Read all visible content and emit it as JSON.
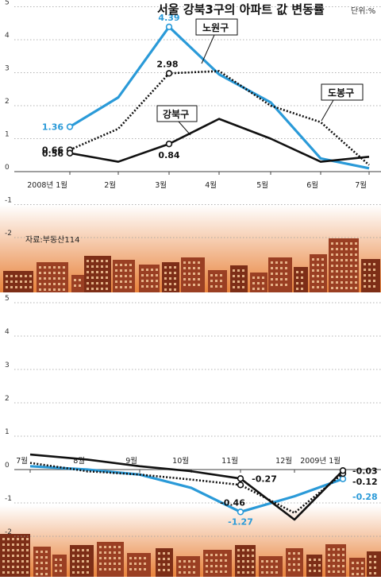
{
  "title": "서울 강북3구의 아파트 값 변동률",
  "unit": "단위:%",
  "source": "자료:부동산114",
  "colors": {
    "nowon": "#2a9ad8",
    "gangbuk": "#111111",
    "dobong": "#111111",
    "grid": "#9a9a9a",
    "ground_top": "#ffffff",
    "ground_bottom": "#e8823a",
    "building": "#9a3f23",
    "building_dark": "#7d2e17",
    "window": "#f3c79a"
  },
  "chart_data": [
    {
      "type": "line",
      "ylim": [
        -2,
        5
      ],
      "yticks": [
        -2,
        -1,
        0,
        1,
        2,
        3,
        4,
        5
      ],
      "ytick_labels": [
        "-2",
        "-1",
        "0",
        "1",
        "2",
        "3",
        "4",
        "5"
      ],
      "categories": [
        "2008년 1월",
        "2월",
        "3월",
        "4월",
        "5월",
        "6월",
        "7월"
      ],
      "series": [
        {
          "name": "노원구",
          "style": "solid",
          "color": "#2a9ad8",
          "values": [
            1.36,
            2.25,
            4.39,
            2.95,
            2.1,
            0.4,
            0.1
          ],
          "labels": [
            {
              "i": 0,
              "text": "1.36"
            },
            {
              "i": 2,
              "text": "4.39"
            }
          ]
        },
        {
          "name": "도봉구",
          "style": "dotted",
          "color": "#111111",
          "values": [
            0.66,
            1.3,
            2.98,
            3.05,
            2.0,
            1.5,
            0.2
          ],
          "labels": [
            {
              "i": 0,
              "text": "0.66"
            },
            {
              "i": 2,
              "text": "2.98"
            }
          ]
        },
        {
          "name": "강북구",
          "style": "solid",
          "color": "#111111",
          "values": [
            0.56,
            0.3,
            0.84,
            1.6,
            1.0,
            0.3,
            0.45
          ],
          "labels": [
            {
              "i": 0,
              "text": "0.56"
            },
            {
              "i": 2,
              "text": "0.84"
            }
          ]
        }
      ],
      "legend": [
        {
          "text": "노원구",
          "series": "노원구"
        },
        {
          "text": "도봉구",
          "series": "도봉구"
        },
        {
          "text": "강북구",
          "series": "강북구"
        }
      ]
    },
    {
      "type": "line",
      "ylim": [
        -2,
        5
      ],
      "yticks": [
        -2,
        -1,
        0,
        1,
        2,
        3,
        4,
        5
      ],
      "ytick_labels": [
        "-2",
        "-1",
        "0",
        "1",
        "2",
        "3",
        "4",
        "5"
      ],
      "categories": [
        "7월",
        "8월",
        "9월",
        "10월",
        "11월",
        "12월",
        "2009년 1월"
      ],
      "series": [
        {
          "name": "노원구",
          "style": "solid",
          "color": "#2a9ad8",
          "values": [
            0.1,
            0.0,
            -0.15,
            -0.55,
            -1.27,
            -0.8,
            -0.28
          ],
          "labels": [
            {
              "i": 4,
              "text": "-1.27"
            },
            {
              "i": 6,
              "text": "-0.28"
            }
          ]
        },
        {
          "name": "도봉구",
          "style": "dotted",
          "color": "#111111",
          "values": [
            0.2,
            -0.05,
            -0.15,
            -0.3,
            -0.46,
            -1.3,
            -0.12
          ],
          "labels": [
            {
              "i": 4,
              "text": "-0.46"
            },
            {
              "i": 6,
              "text": "-0.12"
            }
          ]
        },
        {
          "name": "강북구",
          "style": "solid",
          "color": "#111111",
          "values": [
            0.45,
            0.3,
            0.1,
            -0.05,
            -0.27,
            -1.5,
            -0.03
          ],
          "labels": [
            {
              "i": 4,
              "text": "-0.27"
            },
            {
              "i": 6,
              "text": "-0.03"
            }
          ]
        }
      ]
    }
  ]
}
